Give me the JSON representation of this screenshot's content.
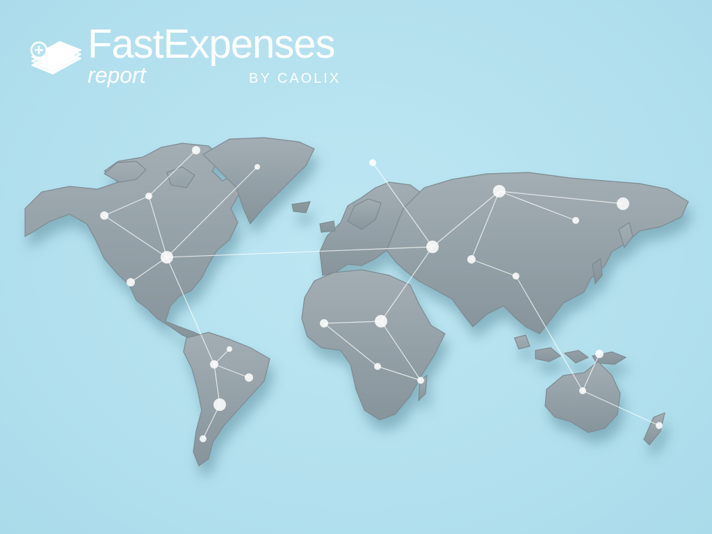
{
  "brand": {
    "name": "FastExpenses",
    "product": "report",
    "vendor": "BY CAOLIX"
  },
  "colors": {
    "background": "#b5e2ef",
    "land": "#9aa7ad",
    "land_shadow": "#6f7c83",
    "network": "#ffffff"
  },
  "icons": [
    "add-expense-stack-icon"
  ]
}
